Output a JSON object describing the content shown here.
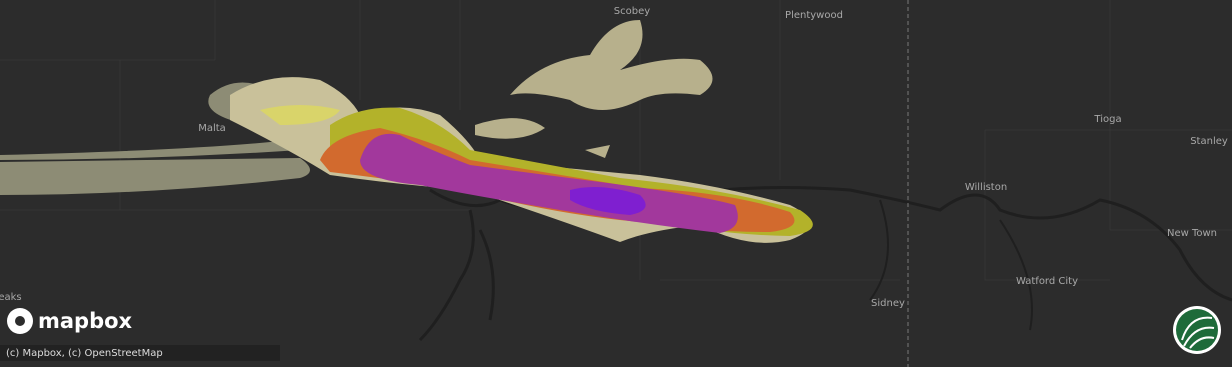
{
  "places": [
    {
      "label": "Scobey"
    },
    {
      "label": "Plentywood"
    },
    {
      "label": "Malta"
    },
    {
      "label": "Tioga"
    },
    {
      "label": "Stanley"
    },
    {
      "label": "Williston"
    },
    {
      "label": "New Town"
    },
    {
      "label": "Watford City"
    },
    {
      "label": "Sidney"
    },
    {
      "label": "eaks"
    }
  ],
  "logo": "mapbox",
  "attribution": "(c) Mapbox, (c) OpenStreetMap"
}
